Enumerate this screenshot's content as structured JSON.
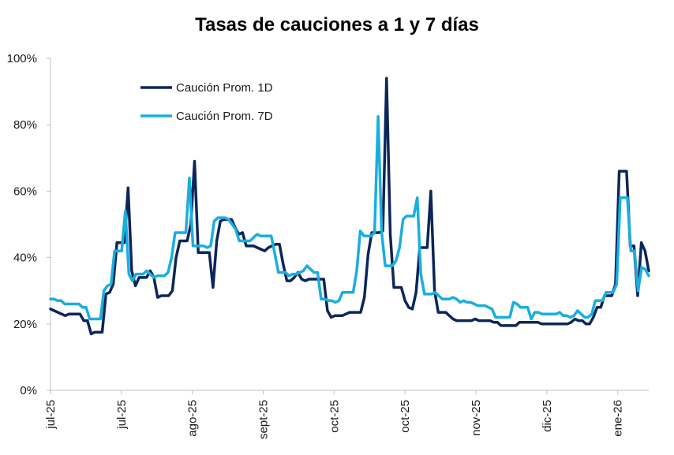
{
  "chart_data": {
    "type": "line",
    "title": "Tasas de cauciones a 1 y 7 días",
    "xlabel": "",
    "ylabel": "",
    "ylim": [
      0,
      100
    ],
    "yticks": [
      0,
      20,
      40,
      60,
      80,
      100
    ],
    "ytick_labels": [
      "0%",
      "20%",
      "40%",
      "60%",
      "80%",
      "100%"
    ],
    "xlim": [
      0,
      135
    ],
    "xticks": [
      0,
      16,
      32,
      48,
      64,
      80,
      96,
      112,
      128
    ],
    "xtick_labels": [
      "jul-25",
      "jul-25",
      "ago-25",
      "sept-25",
      "oct-25",
      "oct-25",
      "nov-25",
      "dic-25",
      "ene-26"
    ],
    "legend_position": "top-left",
    "series": [
      {
        "name": "Caución Prom. 1D",
        "color": "#0d2659",
        "values": [
          24.5,
          24,
          23.5,
          23,
          22.5,
          23,
          23,
          23,
          23,
          21,
          21,
          17,
          17.5,
          17.5,
          17.5,
          29,
          29.5,
          32,
          44.5,
          44.5,
          44.5,
          61,
          36,
          31.5,
          34,
          34,
          34,
          36,
          34,
          28,
          28.5,
          28.5,
          28.5,
          30,
          40,
          45,
          45,
          45,
          50,
          69,
          41.5,
          41.5,
          41.5,
          41.5,
          31,
          45,
          51,
          51.5,
          51.5,
          51.5,
          49,
          47,
          47.5,
          43.5,
          43.5,
          43.5,
          43,
          42.5,
          42,
          43,
          43.5,
          44,
          44,
          38,
          33,
          33,
          34,
          35.5,
          33.5,
          33,
          33.5,
          33.5,
          33.5,
          33.5,
          33.5,
          24,
          22,
          22.5,
          22.5,
          22.5,
          23,
          23.5,
          23.5,
          23.5,
          23.5,
          28,
          41,
          47.5,
          47.5,
          47.5,
          48,
          94,
          47,
          31,
          31,
          31,
          27,
          25,
          24.5,
          29.5,
          43,
          43,
          43,
          60,
          30,
          23.5,
          23.5,
          23.5,
          22.5,
          21.5,
          21,
          21,
          21,
          21,
          21,
          21.5,
          21,
          21,
          21,
          21,
          20.5,
          20.5,
          19.5,
          19.5,
          19.5,
          19.5,
          19.5,
          20.5,
          20.5,
          20.5,
          20.5,
          20.5,
          20.5,
          20,
          20,
          20,
          20,
          20,
          20,
          20,
          20,
          20.5,
          21.5,
          21,
          21,
          20,
          20,
          22,
          25,
          25,
          28.5,
          28.5,
          28.5,
          32,
          66,
          66,
          66,
          43.5,
          43.5,
          28.5,
          44.5,
          42,
          36
        ],
        "x_max": 135
      },
      {
        "name": "Caución Prom. 7D",
        "color": "#1aaee0",
        "values": [
          27.5,
          27.5,
          27,
          27,
          26,
          26,
          26,
          26,
          26,
          25,
          25,
          21.5,
          21.5,
          21.5,
          21.5,
          30,
          31.5,
          32,
          42,
          42,
          42,
          54,
          35,
          33,
          35,
          35,
          35,
          36,
          35,
          34,
          34.5,
          34.5,
          34.5,
          35.5,
          40,
          47.5,
          47.5,
          47.5,
          47.5,
          64,
          43.5,
          43.5,
          43.5,
          43.5,
          43,
          43.5,
          51,
          52,
          52,
          52,
          51.5,
          50,
          48.5,
          45,
          45,
          45,
          45,
          46,
          47,
          46.5,
          46.5,
          46.5,
          46.5,
          41,
          35.5,
          35.5,
          35.5,
          34.5,
          35,
          35,
          35.5,
          36,
          37.5,
          36.5,
          35.5,
          35.5,
          27.5,
          27.5,
          27,
          27,
          26.5,
          27,
          29.5,
          29.5,
          29.5,
          29.5,
          36,
          48,
          46.5,
          46.5,
          46.5,
          47.5,
          82.5,
          47.5,
          37.5,
          37.5,
          37.5,
          39,
          43,
          51.5,
          52.5,
          52.5,
          52.5,
          58,
          35,
          29,
          29,
          29,
          29.5,
          28.5,
          27.5,
          27.5,
          27.5,
          28,
          27.5,
          26.5,
          27,
          26.5,
          26.5,
          26,
          25.5,
          25.5,
          25.5,
          25,
          24.5,
          22,
          22,
          22,
          22,
          22,
          26.5,
          26,
          25,
          25,
          25,
          21.5,
          23.5,
          23.5,
          23,
          23,
          23,
          23,
          23,
          23.5,
          22.5,
          22.5,
          22,
          22.5,
          24,
          23,
          22,
          22,
          23,
          27,
          27,
          27,
          29.5,
          29.5,
          29.5,
          32,
          58,
          58,
          58,
          42,
          42,
          30,
          37,
          36.5,
          34.5
        ],
        "x_max": 135
      }
    ]
  }
}
